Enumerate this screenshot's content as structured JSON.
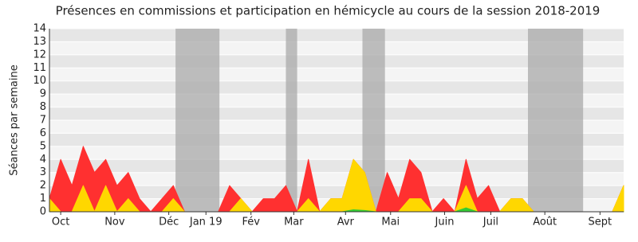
{
  "chart_data": {
    "type": "area",
    "title": "Présences en commissions et participation en hémicycle au cours de la session 2018-2019",
    "y_label": "Séances par semaine",
    "xlim": [
      0,
      51
    ],
    "xticks": [
      {
        "value": 1,
        "label": "Oct"
      },
      {
        "value": 5.8,
        "label": "Nov"
      },
      {
        "value": 10.6,
        "label": "Déc"
      },
      {
        "value": 13.9,
        "label": "Jan 19"
      },
      {
        "value": 17.9,
        "label": "Fév"
      },
      {
        "value": 21.7,
        "label": "Mar"
      },
      {
        "value": 26.3,
        "label": "Avr"
      },
      {
        "value": 30.3,
        "label": "Mai"
      },
      {
        "value": 35.1,
        "label": "Juin"
      },
      {
        "value": 39.2,
        "label": "Juil"
      },
      {
        "value": 44.0,
        "label": "Août"
      },
      {
        "value": 48.9,
        "label": "Sept"
      }
    ],
    "ylim": [
      0,
      14
    ],
    "yticks": [
      0,
      1,
      2,
      3,
      4,
      5,
      6,
      7,
      8,
      9,
      10,
      11,
      12,
      13,
      14
    ],
    "grid": true,
    "shaded_ranges": [
      [
        11.2,
        15.1
      ],
      [
        21.0,
        22.0
      ],
      [
        27.8,
        29.8
      ],
      [
        42.5,
        47.4
      ]
    ],
    "shade_color": "#aaaaaa",
    "series": [
      {
        "color": "#ff3030",
        "values": [
          1,
          4,
          2,
          5,
          3,
          4,
          2,
          3,
          1,
          0,
          1,
          2,
          0,
          0,
          0,
          0,
          2,
          1,
          0,
          1,
          1,
          2,
          0,
          4,
          0,
          1,
          1,
          4,
          3,
          0,
          3,
          1,
          4,
          3,
          0,
          1,
          0,
          4,
          1,
          2,
          0,
          1,
          1,
          0,
          0,
          0,
          0,
          0,
          0,
          0,
          0,
          2
        ]
      },
      {
        "color": "#ffd700",
        "values": [
          1,
          0,
          0,
          2,
          0,
          2,
          0,
          1,
          0,
          0,
          0,
          1,
          0,
          0,
          0,
          0,
          0,
          1,
          0,
          0,
          0,
          0,
          0,
          1,
          0,
          1,
          1,
          4,
          3,
          0,
          0,
          0,
          1,
          1,
          0,
          0,
          0,
          2,
          0,
          0,
          0,
          1,
          1,
          0,
          0,
          0,
          0,
          0,
          0,
          0,
          0,
          2
        ]
      },
      {
        "color": "#33cc33",
        "values": [
          0,
          0,
          0,
          0,
          0,
          0,
          0,
          0,
          0,
          0,
          0,
          0,
          0,
          0,
          0,
          0,
          0,
          0,
          0,
          0,
          0,
          0,
          0,
          0,
          0,
          0,
          0,
          0.15,
          0.1,
          0,
          0,
          0,
          0,
          0,
          0,
          0,
          0,
          0.3,
          0,
          0,
          0,
          0,
          0,
          0,
          0,
          0,
          0,
          0,
          0,
          0,
          0,
          0
        ]
      }
    ]
  }
}
